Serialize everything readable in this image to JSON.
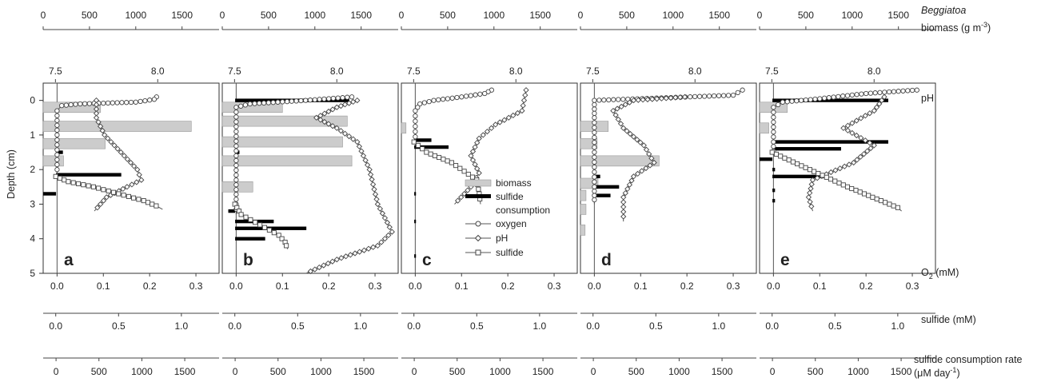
{
  "chart_data": {
    "type": "line",
    "layout": "five vertical depth-profile panels sharing a depth axis",
    "axes": {
      "depth": {
        "label": "Depth (cm)",
        "range": [
          5,
          -0.5
        ],
        "ticks": [
          "0",
          "1",
          "2",
          "3",
          "4",
          "5"
        ],
        "tick_values": [
          0,
          1,
          2,
          3,
          4,
          5
        ]
      },
      "biomass": {
        "label_italic": "Beggiatoa",
        "label": "biomass (g m",
        "label_sup": "-3",
        "label_end": ")",
        "range": [
          0,
          1900
        ],
        "ticks": [
          "0",
          "500",
          "1000",
          "1500"
        ],
        "tick_values": [
          0,
          500,
          1000,
          1500
        ]
      },
      "ph": {
        "label": "pH",
        "range": [
          7.44,
          8.3
        ],
        "ticks": [
          "7.5",
          "8.0"
        ],
        "tick_values": [
          7.5,
          8.0
        ]
      },
      "oxygen": {
        "label_pre": "O",
        "label_sub": "2",
        "label_post": " (mM)",
        "range": [
          -0.03,
          0.35
        ],
        "ticks": [
          "0.0",
          "0.1",
          "0.2",
          "0.3"
        ],
        "tick_values": [
          0,
          0.1,
          0.2,
          0.3
        ]
      },
      "sulfide": {
        "label": "sulfide (mM)",
        "range": [
          -0.1,
          1.3
        ],
        "ticks": [
          "0.0",
          "0.5",
          "1.0"
        ],
        "tick_values": [
          0,
          0.5,
          1.0
        ]
      },
      "rate": {
        "label": "sulfide consumption rate",
        "label2_pre": "(",
        "label2_mu": "μ",
        "label2_mid": "M day",
        "label2_sup": "-1",
        "label2_end": ")",
        "range": [
          -150,
          1900
        ],
        "ticks": [
          "0",
          "500",
          "1000",
          "1500"
        ],
        "tick_values": [
          0,
          500,
          1000,
          1500
        ]
      }
    },
    "legend": {
      "placement": "inside panel c, right",
      "entries": [
        {
          "key": "biomass",
          "label": "biomass",
          "symbol": "bar"
        },
        {
          "key": "consumption",
          "label": "sulfide",
          "label2": "consumption",
          "symbol": "thick-bar"
        },
        {
          "key": "oxygen",
          "label": "oxygen",
          "symbol": "circle"
        },
        {
          "key": "ph",
          "label": "pH",
          "symbol": "diamond"
        },
        {
          "key": "sulfide",
          "label": "sulfide",
          "symbol": "square"
        }
      ]
    },
    "colors": {
      "biomass": "#cccccc",
      "consumption": "#000000",
      "line": "#555555"
    },
    "panels": [
      {
        "letter": "a",
        "biomass": [
          {
            "depth": 0.2,
            "value": 620
          },
          {
            "depth": 0.75,
            "value": 1600
          },
          {
            "depth": 1.25,
            "value": 670
          },
          {
            "depth": 1.75,
            "value": 220
          }
        ],
        "consumption": [
          {
            "depth": 1.5,
            "value": 80
          },
          {
            "depth": 2.15,
            "value": 760
          },
          {
            "depth": 2.7,
            "value": -150
          }
        ],
        "oxygen": [
          [
            -0.1,
            0.215
          ],
          [
            -0.03,
            0.21
          ],
          [
            0.05,
            0.17
          ],
          [
            0.1,
            0.05
          ],
          [
            0.15,
            0.01
          ],
          [
            0.3,
            0.0
          ],
          [
            1.0,
            0.0
          ],
          [
            2.0,
            0.0
          ],
          [
            2.2,
            0.0
          ]
        ],
        "ph": [
          [
            0.0,
            7.7
          ],
          [
            0.5,
            7.7
          ],
          [
            1.0,
            7.74
          ],
          [
            1.5,
            7.82
          ],
          [
            2.0,
            7.9
          ],
          [
            2.3,
            7.92
          ],
          [
            2.5,
            7.85
          ],
          [
            2.8,
            7.75
          ],
          [
            3.2,
            7.69
          ]
        ],
        "sulfide": [
          [
            2.2,
            0.0
          ],
          [
            2.35,
            0.1
          ],
          [
            2.5,
            0.3
          ],
          [
            2.7,
            0.5
          ],
          [
            2.9,
            0.7
          ],
          [
            3.05,
            0.8
          ],
          [
            3.15,
            0.85
          ]
        ]
      },
      {
        "letter": "b",
        "biomass": [
          {
            "depth": 0.2,
            "value": 650
          },
          {
            "depth": 0.6,
            "value": 1350
          },
          {
            "depth": 1.2,
            "value": 1300
          },
          {
            "depth": 1.75,
            "value": 1400
          },
          {
            "depth": 2.5,
            "value": 330
          }
        ],
        "consumption": [
          {
            "depth": 0.0,
            "value": 1330
          },
          {
            "depth": 1.5,
            "value": 50
          },
          {
            "depth": 2.45,
            "value": 30
          },
          {
            "depth": 3.2,
            "value": -80
          },
          {
            "depth": 3.5,
            "value": 450
          },
          {
            "depth": 3.7,
            "value": 830
          },
          {
            "depth": 4.0,
            "value": 350
          }
        ],
        "oxygen": [
          [
            -0.1,
            0.25
          ],
          [
            0.0,
            0.15
          ],
          [
            0.1,
            0.03
          ],
          [
            0.2,
            0.0
          ],
          [
            3.0,
            0.0
          ],
          [
            3.3,
            0.0
          ]
        ],
        "ph": [
          [
            0.0,
            8.1
          ],
          [
            0.2,
            8.0
          ],
          [
            0.5,
            7.9
          ],
          [
            0.8,
            8.0
          ],
          [
            1.2,
            8.1
          ],
          [
            2.0,
            8.16
          ],
          [
            3.0,
            8.2
          ],
          [
            3.8,
            8.27
          ],
          [
            4.2,
            8.2
          ],
          [
            4.6,
            8.0
          ],
          [
            5.0,
            7.85
          ]
        ],
        "sulfide": [
          [
            3.0,
            0.0
          ],
          [
            3.3,
            0.05
          ],
          [
            3.6,
            0.2
          ],
          [
            3.9,
            0.35
          ],
          [
            4.1,
            0.4
          ],
          [
            4.3,
            0.42
          ]
        ]
      },
      {
        "letter": "c",
        "biomass": [
          {
            "depth": 0.8,
            "value": 50
          }
        ],
        "consumption": [
          {
            "depth": 1.15,
            "value": 200
          },
          {
            "depth": 1.35,
            "value": 400
          },
          {
            "depth": 2.7,
            "value": 20
          },
          {
            "depth": 3.5,
            "value": 20
          },
          {
            "depth": 4.5,
            "value": 20
          }
        ],
        "oxygen": [
          [
            -0.3,
            0.165
          ],
          [
            -0.2,
            0.15
          ],
          [
            -0.1,
            0.1
          ],
          [
            0.0,
            0.04
          ],
          [
            0.1,
            0.01
          ],
          [
            0.3,
            0.0
          ],
          [
            1.2,
            0.0
          ]
        ],
        "ph": [
          [
            -0.3,
            8.05
          ],
          [
            0.3,
            8.03
          ],
          [
            0.7,
            7.9
          ],
          [
            1.1,
            7.82
          ],
          [
            1.6,
            7.78
          ],
          [
            2.1,
            7.82
          ],
          [
            2.5,
            7.78
          ],
          [
            3.0,
            7.7
          ]
        ],
        "sulfide": [
          [
            1.2,
            0.0
          ],
          [
            1.5,
            0.1
          ],
          [
            1.8,
            0.3
          ],
          [
            2.3,
            0.5
          ],
          [
            2.7,
            0.52
          ],
          [
            3.0,
            0.53
          ]
        ]
      },
      {
        "letter": "d",
        "biomass": [
          {
            "depth": 0.75,
            "value": 300
          },
          {
            "depth": 1.25,
            "value": 180
          },
          {
            "depth": 1.75,
            "value": 850
          },
          {
            "depth": 2.4,
            "value": 190
          },
          {
            "depth": 2.75,
            "value": 60
          },
          {
            "depth": 3.15,
            "value": 60
          },
          {
            "depth": 3.75,
            "value": 50
          }
        ],
        "consumption": [
          {
            "depth": 2.2,
            "value": 80
          },
          {
            "depth": 2.5,
            "value": 300
          },
          {
            "depth": 2.75,
            "value": 200
          }
        ],
        "oxygen": [
          [
            -0.3,
            0.32
          ],
          [
            -0.15,
            0.3
          ],
          [
            0.0,
            0.0
          ],
          [
            0.5,
            0.0
          ],
          [
            2.5,
            0.0
          ],
          [
            3.0,
            0.0
          ]
        ],
        "ph": [
          [
            -0.1,
            7.95
          ],
          [
            0.0,
            7.7
          ],
          [
            0.3,
            7.6
          ],
          [
            0.8,
            7.65
          ],
          [
            1.3,
            7.75
          ],
          [
            1.8,
            7.8
          ],
          [
            2.2,
            7.7
          ],
          [
            2.8,
            7.65
          ],
          [
            3.5,
            7.65
          ]
        ],
        "sulfide": []
      },
      {
        "letter": "e",
        "biomass": [
          {
            "depth": 0.2,
            "value": 300
          },
          {
            "depth": 0.8,
            "value": 100
          }
        ],
        "consumption": [
          {
            "depth": 0.0,
            "value": 1350
          },
          {
            "depth": 1.2,
            "value": 1350
          },
          {
            "depth": 1.4,
            "value": 800
          },
          {
            "depth": 1.7,
            "value": -150
          },
          {
            "depth": 2.2,
            "value": 600
          },
          {
            "depth": 2.0,
            "value": 30
          },
          {
            "depth": 2.6,
            "value": 30
          },
          {
            "depth": 2.9,
            "value": 30
          }
        ],
        "oxygen": [
          [
            -0.3,
            0.31
          ],
          [
            -0.2,
            0.2
          ],
          [
            -0.05,
            0.1
          ],
          [
            0.05,
            0.02
          ],
          [
            0.2,
            0.0
          ],
          [
            1.2,
            0.0
          ],
          [
            1.6,
            0.0
          ]
        ],
        "ph": [
          [
            -0.1,
            8.05
          ],
          [
            0.3,
            8.0
          ],
          [
            0.8,
            7.85
          ],
          [
            1.3,
            8.0
          ],
          [
            1.8,
            7.9
          ],
          [
            2.3,
            7.7
          ],
          [
            2.8,
            7.68
          ],
          [
            3.2,
            7.7
          ]
        ],
        "sulfide": [
          [
            1.5,
            0.0
          ],
          [
            2.0,
            0.3
          ],
          [
            2.5,
            0.6
          ],
          [
            2.8,
            0.8
          ],
          [
            3.1,
            1.0
          ],
          [
            3.2,
            1.03
          ]
        ]
      }
    ]
  }
}
